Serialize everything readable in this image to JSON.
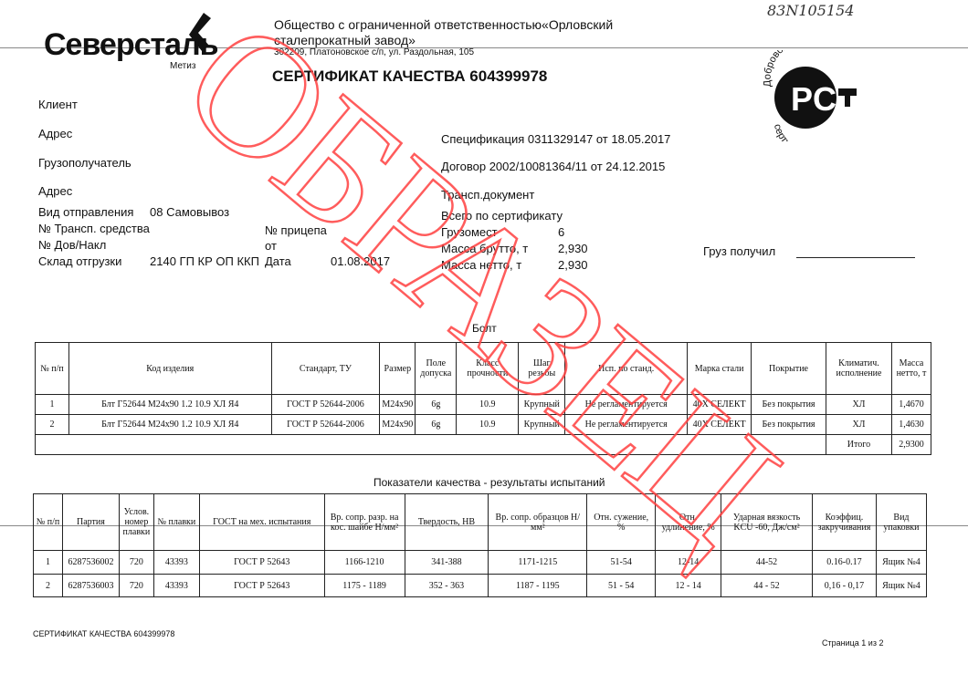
{
  "logo": {
    "brand": "Северсталь",
    "sub": "Метиз"
  },
  "company": {
    "name_line1": "Общество с ограниченной ответственностью«Орловский",
    "name_line2": "сталепрокатный завод»",
    "address": "302209, Платоновское с/п, ул. Раздольная, 105"
  },
  "handwritten": "83N105154",
  "title": "СЕРТИФИКАТ КАЧЕСТВА 604399978",
  "seal": {
    "top": "Добровольная",
    "bottom": "сертификация",
    "mark": "РСТ"
  },
  "fields": {
    "client": "Клиент",
    "address": "Адрес",
    "consignee": "Грузополучатель",
    "address2": "Адрес",
    "shipping_label": "Вид отправления",
    "shipping_value": "08 Самовывоз",
    "vehicle_label": "№ Трансп. средства",
    "trailer_label": "№ прицепа",
    "invoice_label": "№ Дов/Накл",
    "from_label": "от",
    "warehouse_label": "Склад отгрузки",
    "warehouse_value": "2140 ГП КР ОП ККП",
    "date_label": "Дата",
    "date_value": "01.08.2017",
    "spec": "Спецификация  0311329147 от 18.05.2017",
    "contract": "Договор  2002/10081364/11 от 24.12.2015",
    "transport_doc": "Трансп.документ",
    "total_label": "Всего по сертификату",
    "places_label": "Грузомест",
    "places_value": "6",
    "gross_label": "Масса брутто, т",
    "gross_value": "2,930",
    "net_label": "Масса нетто, т",
    "net_value": "2,930",
    "received_label": "Груз получил"
  },
  "table1": {
    "caption": "Болт",
    "headers": [
      "№ п/п",
      "Код изделия",
      "Стандарт, ТУ",
      "Размер",
      "Поле допуска",
      "Класс прочности",
      "Шаг резьбы",
      "Исп. по станд.",
      "Марка стали",
      "Покрытие",
      "Климатич. исполнение",
      "Масса нетто, т"
    ],
    "rows": [
      [
        "1",
        "Блт Г52644 М24х90 1.2 10.9 ХЛ Я4",
        "ГОСТ Р 52644-2006",
        "М24х90",
        "6g",
        "10.9",
        "Крупный",
        "Не регламентируется",
        "40Х СЕЛЕКТ",
        "Без покрытия",
        "ХЛ",
        "1,4670"
      ],
      [
        "2",
        "Блт Г52644 М24х90 1.2 10.9 ХЛ Я4",
        "ГОСТ Р 52644-2006",
        "М24х90",
        "6g",
        "10.9",
        "Крупный",
        "Не регламентируется",
        "40Х СЕЛЕКТ",
        "Без покрытия",
        "ХЛ",
        "1,4630"
      ]
    ],
    "total_label": "Итого",
    "total_value": "2,9300"
  },
  "table2": {
    "caption": "Показатели качества - результаты испытаний",
    "headers": [
      "№ п/п",
      "Партия",
      "Услов. номер плавки",
      "№ плавки",
      "ГОСТ на мех. испытания",
      "Вр. сопр. разр. на кос. шайбе Н/мм²",
      "Твердость, НВ",
      "Вр. сопр. образцов Н/мм²",
      "Отн. сужение, %",
      "Отн. удлинение, %",
      "Ударная вязкость KCU -60, Дж/см²",
      "Коэффиц. закручивания",
      "Вид упаковки"
    ],
    "rows": [
      [
        "1",
        "6287536002",
        "720",
        "43393",
        "ГОСТ Р 52643",
        "1166-1210",
        "341-388",
        "1171-1215",
        "51-54",
        "12-14",
        "44-52",
        "0.16-0.17",
        "Ящик №4"
      ],
      [
        "2",
        "6287536003",
        "720",
        "43393",
        "ГОСТ Р 52643",
        "1175 - 1189",
        "352 - 363",
        "1187 - 1195",
        "51 - 54",
        "12 - 14",
        "44 - 52",
        "0,16 - 0,17",
        "Ящик №4"
      ]
    ]
  },
  "footer": {
    "left": "СЕРТИФИКАТ КАЧЕСТВА 604399978",
    "right": "Страница 1 из 2"
  },
  "watermark": "ОБРАЗЕЦ",
  "colors": {
    "watermark": "#ff4040"
  }
}
